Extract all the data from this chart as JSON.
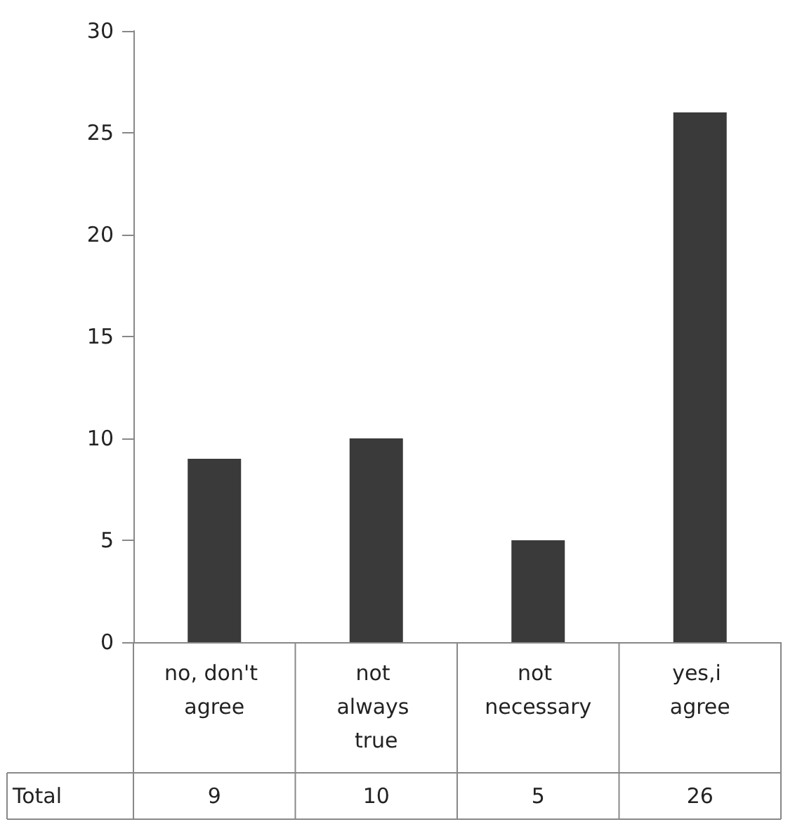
{
  "chart_data": {
    "type": "bar",
    "categories": [
      "no, don't agree",
      "not always true",
      "not necessary",
      "yes,i agree"
    ],
    "series": [
      {
        "name": "Total",
        "color": "#3a3a3a",
        "values": [
          9,
          10,
          5,
          26
        ]
      }
    ],
    "ylim": [
      0,
      30
    ],
    "yticks": [
      0,
      5,
      10,
      15,
      20,
      25,
      30
    ],
    "grid": false,
    "legend": false,
    "data_labels": true
  }
}
